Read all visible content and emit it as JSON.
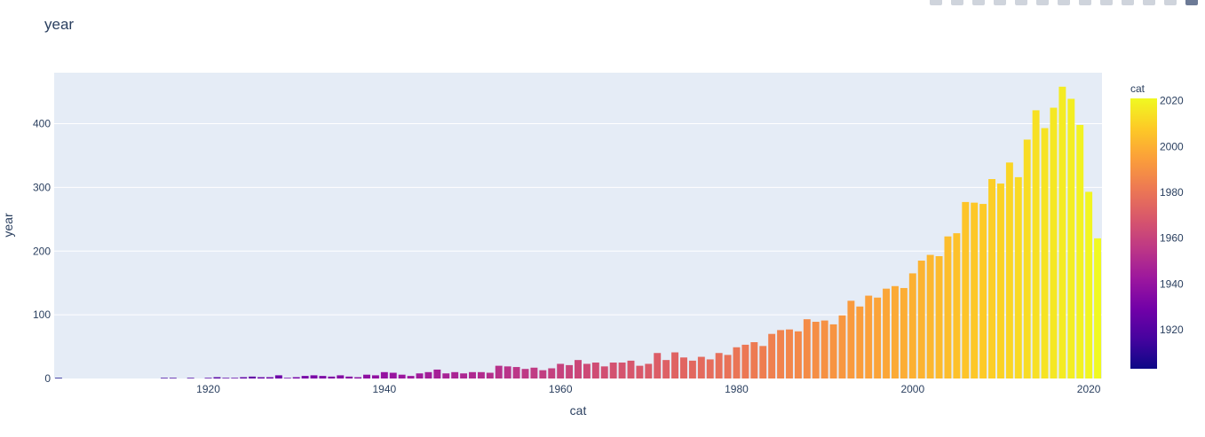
{
  "modebar": {
    "buttons": [
      "camera-icon",
      "zoom-icon",
      "pan-icon",
      "box-select-icon",
      "lasso-icon",
      "zoom-in-icon",
      "zoom-out-icon",
      "autoscale-icon",
      "reset-axes-icon",
      "spike-lines-icon",
      "hover-closest-icon",
      "hover-compare-icon",
      "plotly-logo-icon"
    ]
  },
  "chart_data": {
    "type": "bar",
    "title": "year",
    "xlabel": "cat",
    "ylabel": "year",
    "xlim": [
      1902.5,
      2021.5
    ],
    "ylim": [
      0,
      480
    ],
    "xticks": [
      1920,
      1940,
      1960,
      1980,
      2000,
      2020
    ],
    "yticks": [
      0,
      100,
      200,
      300,
      400
    ],
    "grid": true,
    "x": [
      1903,
      1904,
      1905,
      1906,
      1907,
      1908,
      1909,
      1910,
      1911,
      1912,
      1913,
      1914,
      1915,
      1916,
      1917,
      1918,
      1919,
      1920,
      1921,
      1922,
      1923,
      1924,
      1925,
      1926,
      1927,
      1928,
      1929,
      1930,
      1931,
      1932,
      1933,
      1934,
      1935,
      1936,
      1937,
      1938,
      1939,
      1940,
      1941,
      1942,
      1943,
      1944,
      1945,
      1946,
      1947,
      1948,
      1949,
      1950,
      1951,
      1952,
      1953,
      1954,
      1955,
      1956,
      1957,
      1958,
      1959,
      1960,
      1961,
      1962,
      1963,
      1964,
      1965,
      1966,
      1967,
      1968,
      1969,
      1970,
      1971,
      1972,
      1973,
      1974,
      1975,
      1976,
      1977,
      1978,
      1979,
      1980,
      1981,
      1982,
      1983,
      1984,
      1985,
      1986,
      1987,
      1988,
      1989,
      1990,
      1991,
      1992,
      1993,
      1994,
      1995,
      1996,
      1997,
      1998,
      1999,
      2000,
      2001,
      2002,
      2003,
      2004,
      2005,
      2006,
      2007,
      2008,
      2009,
      2010,
      2011,
      2012,
      2013,
      2014,
      2015,
      2016,
      2017,
      2018,
      2019,
      2020,
      2021
    ],
    "values": [
      1,
      0,
      0,
      0,
      0,
      0,
      0,
      0,
      0,
      0,
      0,
      0,
      1,
      1,
      0,
      1,
      0,
      1,
      2,
      1,
      1,
      2,
      3,
      2,
      2,
      5,
      1,
      2,
      4,
      5,
      4,
      3,
      5,
      3,
      2,
      6,
      5,
      10,
      9,
      6,
      4,
      8,
      10,
      14,
      8,
      10,
      8,
      10,
      10,
      9,
      20,
      19,
      18,
      15,
      17,
      13,
      16,
      23,
      21,
      29,
      23,
      25,
      19,
      25,
      25,
      28,
      20,
      23,
      40,
      29,
      41,
      33,
      28,
      34,
      30,
      40,
      37,
      49,
      53,
      57,
      51,
      70,
      76,
      77,
      74,
      93,
      89,
      91,
      85,
      99,
      122,
      113,
      130,
      127,
      141,
      145,
      142,
      165,
      185,
      194,
      192,
      223,
      228,
      277,
      276,
      274,
      313,
      306,
      339,
      316,
      375,
      421,
      393,
      425,
      458,
      439,
      398,
      293,
      220
    ],
    "colorbar": {
      "title": "cat",
      "range": [
        1903,
        2021
      ],
      "ticks": [
        1920,
        1940,
        1960,
        1980,
        2000,
        2020
      ],
      "colorscale": [
        "#0d0887",
        "#46039f",
        "#7201a8",
        "#9c179e",
        "#bd3786",
        "#d8576b",
        "#ed7953",
        "#fb9f3a",
        "#fdca26",
        "#f0f921"
      ]
    },
    "colors": {
      "plot_bg": "#e5ecf6",
      "grid": "#ffffff",
      "text": "#2a3f5f"
    }
  }
}
